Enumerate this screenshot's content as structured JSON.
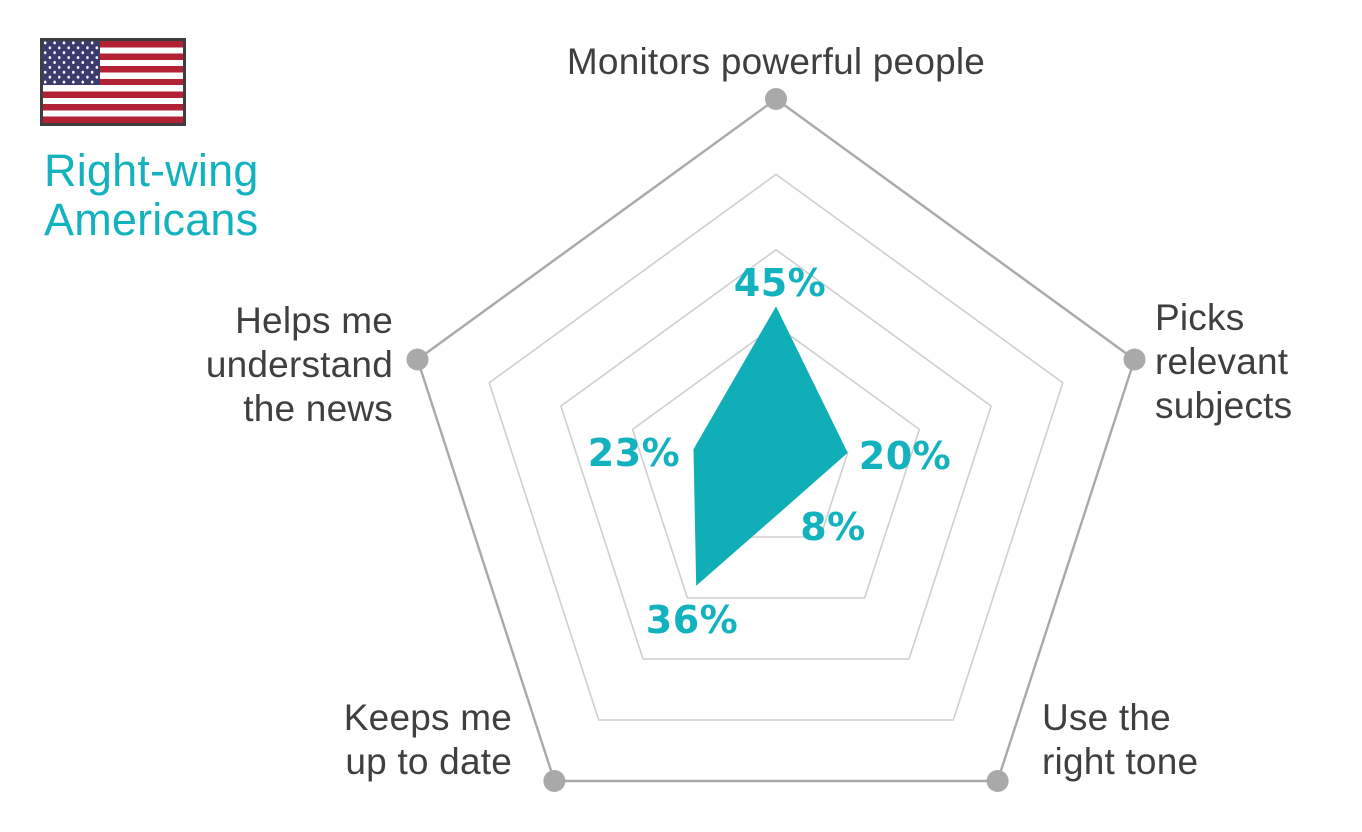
{
  "legend": {
    "flag": "us-flag",
    "lines": [
      "Right-wing",
      "Americans"
    ]
  },
  "chart_data": {
    "type": "radar",
    "series_name": "Right-wing Americans",
    "categories": [
      "Monitors powerful people",
      "Picks relevant subjects",
      "Use the right tone",
      "Keeps me up to date",
      "Helps me understand the news"
    ],
    "values": [
      45,
      20,
      8,
      36,
      23
    ],
    "axes": [
      {
        "label": "Monitors powerful people",
        "lines": [
          "Monitors powerful people"
        ],
        "value": 45,
        "value_label": "45%"
      },
      {
        "label": "Picks relevant subjects",
        "lines": [
          "Picks",
          "relevant",
          "subjects"
        ],
        "value": 20,
        "value_label": "20%"
      },
      {
        "label": "Use the right tone",
        "lines": [
          "Use the",
          "right tone"
        ],
        "value": 8,
        "value_label": "8%"
      },
      {
        "label": "Keeps me up to date",
        "lines": [
          "Keeps me",
          "up to date"
        ],
        "value": 36,
        "value_label": "36%"
      },
      {
        "label": "Helps me understand the news",
        "lines": [
          "Helps me",
          "understand",
          "the news"
        ],
        "value": 23,
        "value_label": "23%"
      }
    ],
    "scale": {
      "min": 0,
      "max": 100,
      "ring_values": [
        20,
        40,
        60,
        80,
        100
      ]
    },
    "grid": "pentagon-rings",
    "legend_position": "top-left",
    "colors": {
      "series_fill": "#10AEB6",
      "accent_text": "#13B2BF",
      "axis_label_text": "#3E3F41",
      "grid_inner": "#CFCFCF",
      "grid_outer": "#A9A9A9",
      "vertex_dot": "#A9A9A9",
      "flag_red": "#B22234",
      "flag_blue": "#3C3B6E",
      "flag_border": "#3E3E40"
    }
  }
}
